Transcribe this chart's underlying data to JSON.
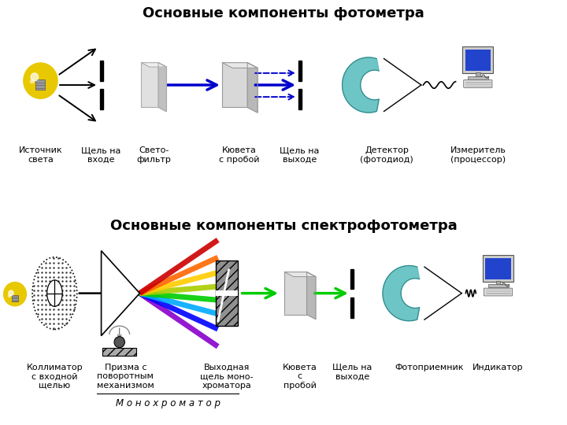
{
  "title1": "Основные компоненты фотометра",
  "title2": "Основные компоненты спектрофотометра",
  "bg_color": "#ffffff",
  "top_labels": [
    "Источник\nсвета",
    "Щель на\nвходе",
    "Свето-\nфильтр",
    "Кювета\nс пробой",
    "Щель на\nвыходе",
    "Детектор\n(фотодиод)",
    "Измеритель\n(процессор)"
  ],
  "bot_labels": [
    "Коллиматор\nс входной\nщелью",
    "Призма с\nповоротным\nмеханизмом",
    "Выходная\nщель моно-\nхроматора",
    "Кювета\nс\nпробой",
    "Щель на\nвыходе",
    "Фотоприемник",
    "Индикатор"
  ],
  "monochromator_label": "М о н о х р о м а т о р",
  "font_size_title": 13,
  "font_size_label": 8
}
